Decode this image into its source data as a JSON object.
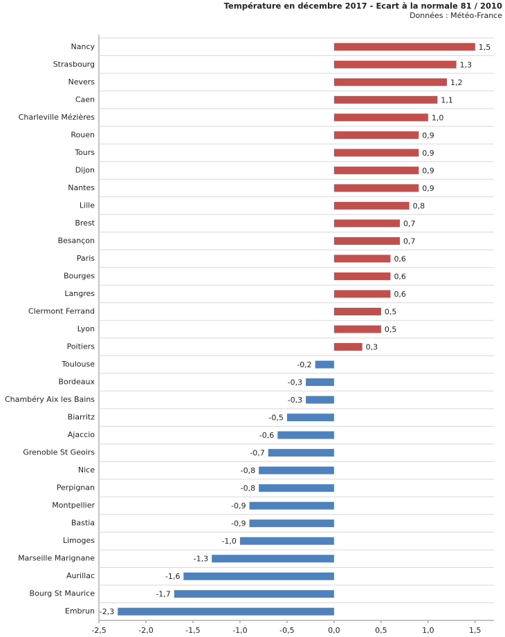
{
  "chart_data": {
    "type": "hbar",
    "title": "Température en décembre 2017 - Ecart à la normale 81 / 2010",
    "subtitle": "Données : Météo-France",
    "categories": [
      "Nancy",
      "Strasbourg",
      "Nevers",
      "Caen",
      "Charleville Mézières",
      "Rouen",
      "Tours",
      "Dijon",
      "Nantes",
      "Lille",
      "Brest",
      "Besançon",
      "Paris",
      "Bourges",
      "Langres",
      "Clermont Ferrand",
      "Lyon",
      "Poitiers",
      "Toulouse",
      "Bordeaux",
      "Chambéry Aix les Bains",
      "Biarritz",
      "Ajaccio",
      "Grenoble St Geoirs",
      "Nice",
      "Perpignan",
      "Montpellier",
      "Bastia",
      "Limoges",
      "Marseille Marignane",
      "Aurillac",
      "Bourg St Maurice",
      "Embrun"
    ],
    "values": [
      1.5,
      1.3,
      1.2,
      1.1,
      1.0,
      0.9,
      0.9,
      0.9,
      0.9,
      0.8,
      0.7,
      0.7,
      0.6,
      0.6,
      0.6,
      0.5,
      0.5,
      0.3,
      -0.2,
      -0.3,
      -0.3,
      -0.5,
      -0.6,
      -0.7,
      -0.8,
      -0.8,
      -0.9,
      -0.9,
      -1.0,
      -1.3,
      -1.6,
      -1.7,
      -2.3
    ],
    "value_labels": [
      "1,5",
      "1,3",
      "1,2",
      "1,1",
      "1,0",
      "0,9",
      "0,9",
      "0,9",
      "0,9",
      "0,8",
      "0,7",
      "0,7",
      "0,6",
      "0,6",
      "0,6",
      "0,5",
      "0,5",
      "0,3",
      "-0,2",
      "-0,3",
      "-0,3",
      "-0,5",
      "-0,6",
      "-0,7",
      "-0,8",
      "-0,8",
      "-0,9",
      "-0,9",
      "-1,0",
      "-1,3",
      "-1,6",
      "-1,7",
      "-2,3"
    ],
    "positive_color": "#c0504d",
    "negative_color": "#4f81bd",
    "xlim": [
      -2.5,
      1.7
    ],
    "xticks": [
      {
        "value": -2.5,
        "label": "-2,5"
      },
      {
        "value": -2.0,
        "label": "-2,0"
      },
      {
        "value": -1.5,
        "label": "-1,5"
      },
      {
        "value": -1.0,
        "label": "-1,0"
      },
      {
        "value": -0.5,
        "label": "-0,5"
      },
      {
        "value": 0,
        "label": "0,0"
      },
      {
        "value": 0.5,
        "label": "0,5"
      },
      {
        "value": 1.0,
        "label": "1,0"
      },
      {
        "value": 1.5,
        "label": "1,5"
      }
    ],
    "grid": true
  }
}
